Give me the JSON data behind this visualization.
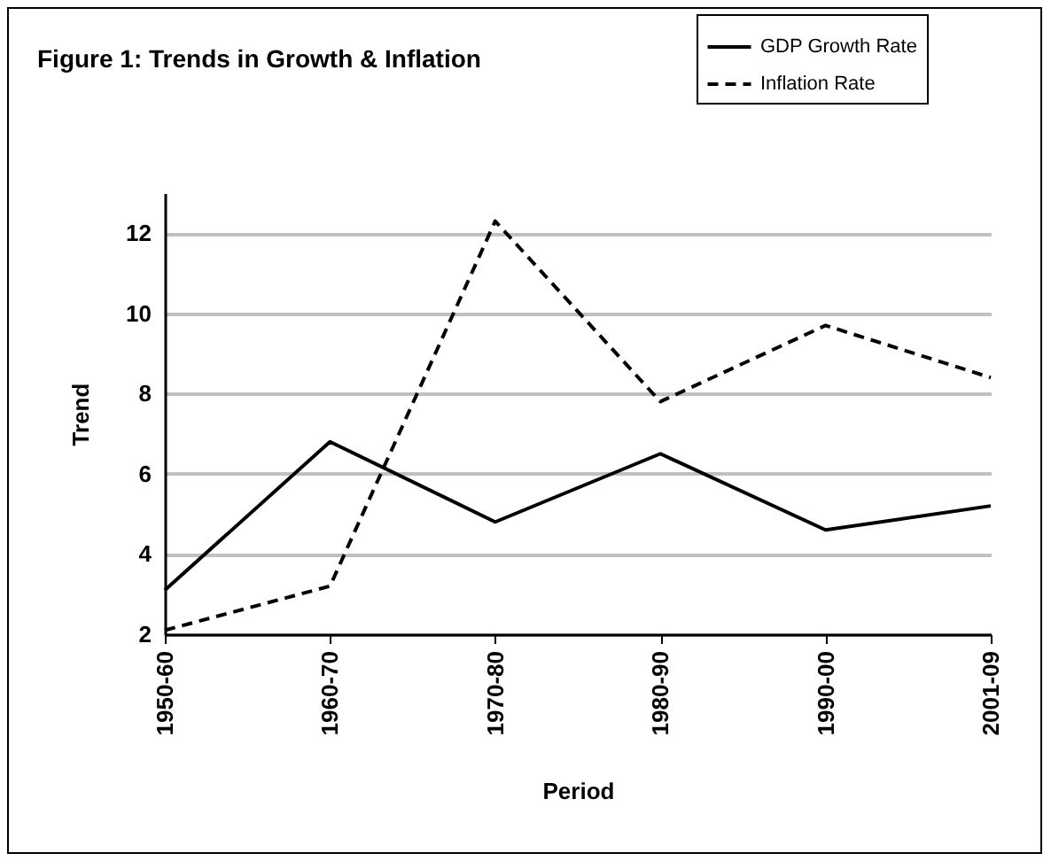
{
  "chart_data": {
    "type": "line",
    "title": "Figure 1: Trends in Growth & Inflation",
    "xlabel": "Period",
    "ylabel": "Trend",
    "categories": [
      "1950-60",
      "1960-70",
      "1970-80",
      "1980-90",
      "1990-00",
      "2001-09"
    ],
    "series": [
      {
        "name": "GDP Growth Rate",
        "color": "#000000",
        "line_style": "solid",
        "values": [
          3.1,
          6.8,
          4.8,
          6.5,
          4.6,
          5.2
        ]
      },
      {
        "name": "Inflation Rate",
        "color": "#000000",
        "line_style": "dashed",
        "values": [
          2.1,
          3.2,
          12.3,
          7.8,
          9.7,
          8.4
        ]
      }
    ],
    "ylim": [
      2,
      13
    ],
    "yticks": [
      2,
      4,
      6,
      8,
      10,
      12
    ],
    "grid": "y",
    "legend": "top right"
  }
}
